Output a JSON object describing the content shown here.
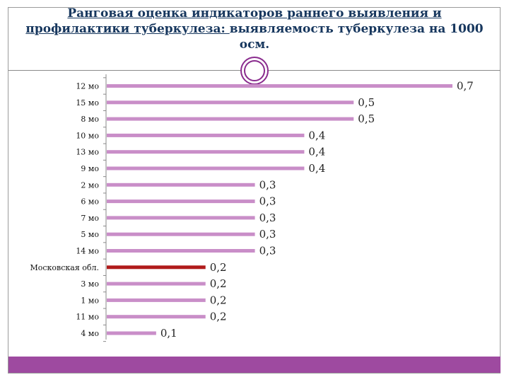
{
  "slide": {
    "title_underlined": "Ранговая оценка индикаторов раннего выявления и профилактики туберкулеза: ",
    "title_rest": "выявляемость туберкулеза на 1000 осм."
  },
  "colors": {
    "bar": "#c98ec8",
    "highlight": "#b01b1b",
    "title": "#17375e",
    "accent": "#9e4aa0"
  },
  "chart_data": {
    "type": "bar",
    "orientation": "horizontal",
    "title": "",
    "xlabel": "",
    "ylabel": "",
    "xlim": [
      0,
      0.7
    ],
    "grid": false,
    "legend": "none",
    "categories": [
      "12 мо",
      "15 мо",
      "8  мо",
      "10 мо",
      "13 мо",
      "9 мо",
      "2 мо",
      "6 мо",
      "7 мо",
      "5 мо",
      "14 мо",
      "Московская обл.",
      "3 мо",
      "1 мо",
      "11 мо",
      "4 мо"
    ],
    "values": [
      0.7,
      0.5,
      0.5,
      0.4,
      0.4,
      0.4,
      0.3,
      0.3,
      0.3,
      0.3,
      0.3,
      0.2,
      0.2,
      0.2,
      0.2,
      0.1
    ],
    "value_labels": [
      "0,7",
      "0,5",
      "0,5",
      "0,4",
      "0,4",
      "0,4",
      "0,3",
      "0,3",
      "0,3",
      "0,3",
      "0,3",
      "0,2",
      "0,2",
      "0,2",
      "0,2",
      "0,1"
    ],
    "highlight_category": "Московская обл."
  }
}
